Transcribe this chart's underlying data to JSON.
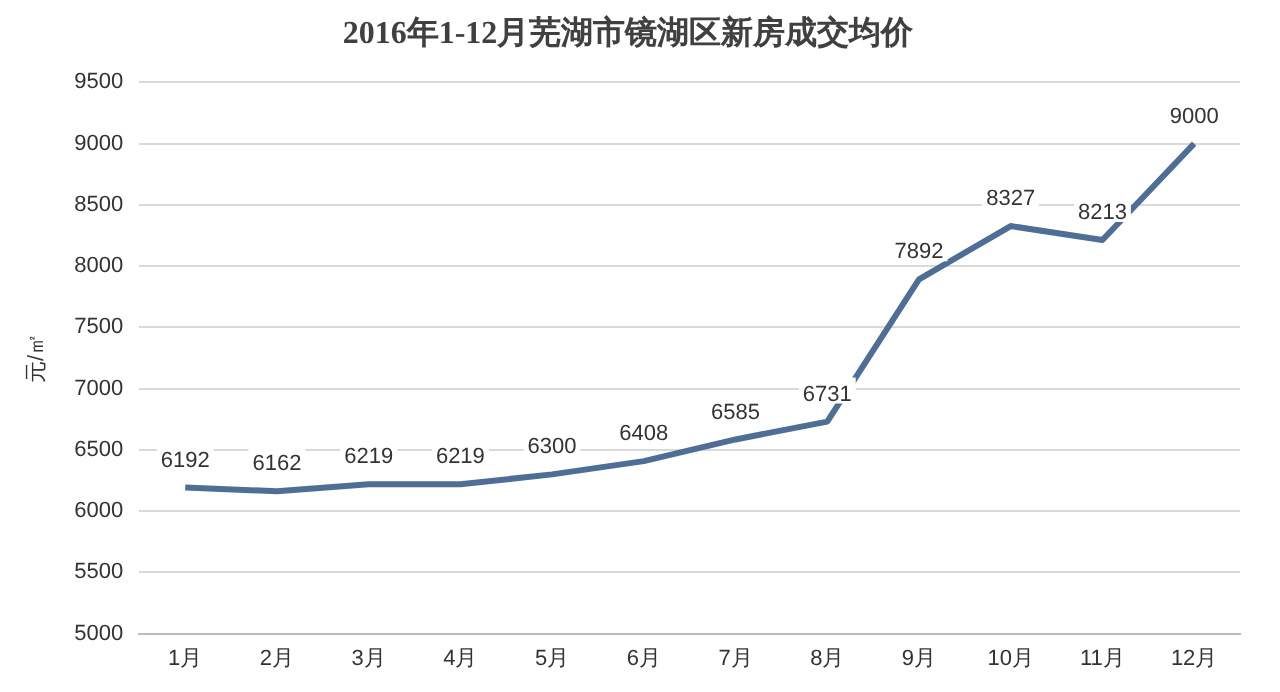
{
  "chart_data": {
    "type": "line",
    "title": "2016年1-12月芜湖市镜湖区新房成交均价",
    "ylabel": "元/㎡",
    "categories": [
      "1月",
      "2月",
      "3月",
      "4月",
      "5月",
      "6月",
      "7月",
      "8月",
      "9月",
      "10月",
      "11月",
      "12月"
    ],
    "series": [
      {
        "color": "#4f6e96",
        "values": [
          6192,
          6162,
          6219,
          6219,
          6300,
          6408,
          6585,
          6731,
          7892,
          8327,
          8213,
          9000
        ]
      }
    ],
    "ylim": [
      5000,
      9500
    ],
    "yticks": [
      5000,
      5500,
      6000,
      6500,
      7000,
      7500,
      8000,
      8500,
      9000,
      9500
    ],
    "grid": "y",
    "legend": false,
    "marker": "none",
    "line_style": "solid",
    "data_labels": true
  }
}
